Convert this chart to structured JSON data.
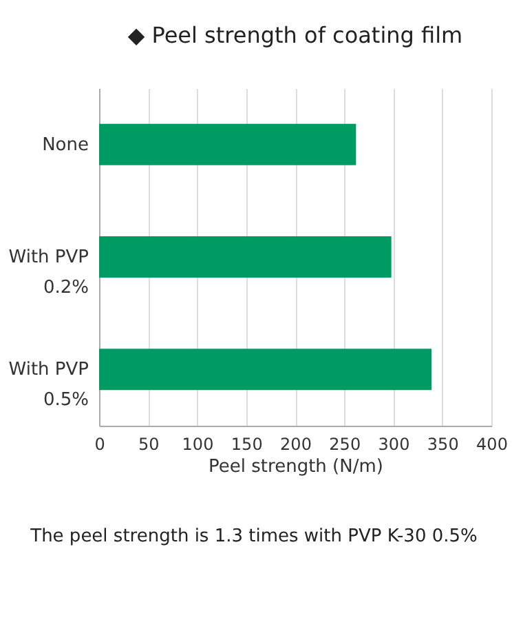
{
  "chart_data": {
    "type": "bar",
    "orientation": "horizontal",
    "title": "◆ Peel strength of coating film",
    "categories": [
      "None",
      "With PVP 0.2%",
      "With PVP 0.5%"
    ],
    "values": [
      262,
      298,
      339
    ],
    "color": "#009a63",
    "xlabel": "Peel strength (N/m)",
    "xlim": [
      0,
      400
    ],
    "xticks": [
      0,
      50,
      100,
      150,
      200,
      250,
      300,
      350,
      400
    ],
    "grid": "x",
    "annotations": [
      "The peel strength is 1.3 times with PVP K-30 0.5%"
    ]
  }
}
